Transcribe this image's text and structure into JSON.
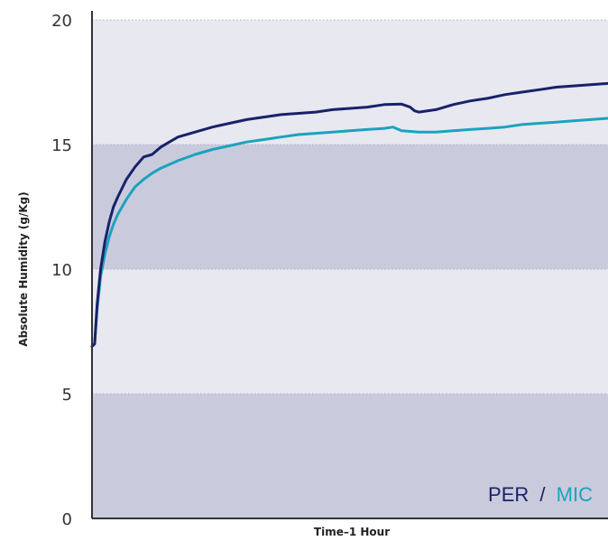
{
  "chart_data": {
    "type": "line",
    "title": "",
    "xlabel": "Time–1 Hour",
    "ylabel": "Absolute Humidity (g/Kg)",
    "ylim": [
      0,
      20
    ],
    "xlim": [
      0,
      60
    ],
    "x_unit": "minutes",
    "yticks": [
      "0",
      "5",
      "10",
      "15",
      "20"
    ],
    "bands": [
      {
        "from": 0,
        "to": 5,
        "color": "#c9cbdd"
      },
      {
        "from": 5,
        "to": 10,
        "color": "#e8e8f0"
      },
      {
        "from": 10,
        "to": 15,
        "color": "#c9cbdd"
      },
      {
        "from": 15,
        "to": 20,
        "color": "#e8e8f0"
      }
    ],
    "grid": "dotted at band edges",
    "legend": {
      "placement": "bottom-right",
      "separator": "/",
      "separator_color": "#1a2060"
    },
    "series": [
      {
        "name": "PER",
        "color": "#18226a",
        "x": [
          0,
          0.3,
          0.6,
          1,
          1.5,
          2,
          2.5,
          3,
          4,
          5,
          6,
          7,
          8,
          9,
          10,
          12,
          14,
          16,
          18,
          20,
          22,
          24,
          26,
          28,
          30,
          32,
          34,
          36,
          37,
          37.5,
          38,
          40,
          42,
          44,
          46,
          48,
          50,
          52,
          54,
          56,
          58,
          60
        ],
        "values": [
          6.9,
          7.0,
          8.6,
          10.0,
          11.1,
          11.9,
          12.5,
          12.9,
          13.6,
          14.1,
          14.5,
          14.6,
          14.9,
          15.1,
          15.3,
          15.5,
          15.7,
          15.85,
          16.0,
          16.1,
          16.2,
          16.25,
          16.3,
          16.4,
          16.45,
          16.5,
          16.6,
          16.62,
          16.5,
          16.35,
          16.3,
          16.4,
          16.6,
          16.75,
          16.85,
          17.0,
          17.1,
          17.2,
          17.3,
          17.35,
          17.4,
          17.45
        ]
      },
      {
        "name": "MIC",
        "color": "#1aa3be",
        "x": [
          0,
          0.3,
          0.6,
          1,
          1.5,
          2,
          2.5,
          3,
          4,
          5,
          6,
          7,
          8,
          10,
          12,
          14,
          16,
          18,
          20,
          22,
          24,
          26,
          28,
          30,
          32,
          34,
          35,
          36,
          38,
          40,
          42,
          44,
          46,
          48,
          50,
          52,
          54,
          56,
          58,
          60
        ],
        "values": [
          6.9,
          7.0,
          8.4,
          9.7,
          10.6,
          11.3,
          11.8,
          12.2,
          12.8,
          13.3,
          13.6,
          13.85,
          14.05,
          14.35,
          14.6,
          14.8,
          14.95,
          15.1,
          15.2,
          15.3,
          15.4,
          15.45,
          15.5,
          15.55,
          15.6,
          15.65,
          15.7,
          15.55,
          15.5,
          15.5,
          15.55,
          15.6,
          15.65,
          15.7,
          15.8,
          15.85,
          15.9,
          15.95,
          16.0,
          16.05
        ]
      }
    ]
  }
}
